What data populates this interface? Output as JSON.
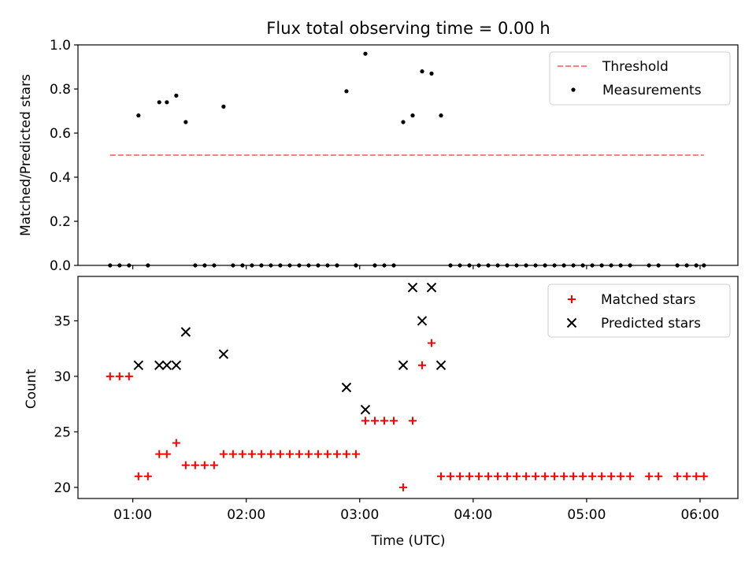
{
  "chart_data": [
    {
      "type": "scatter",
      "title": "Flux total observing time = 0.00 h",
      "xlabel": "",
      "ylabel": "Matched/Predicted stars",
      "ylim": [
        0,
        1.0
      ],
      "yticks": [
        "0.0",
        "0.2",
        "0.4",
        "0.6",
        "0.8",
        "1.0"
      ],
      "ytick_values": [
        0,
        0.2,
        0.4,
        0.6,
        0.8,
        1.0
      ],
      "legend": {
        "position": "top-right",
        "entries": [
          "Threshold",
          "Measurements"
        ]
      },
      "threshold": {
        "name": "Threshold",
        "value": 0.5,
        "x_start": "00:48",
        "x_end": "06:02",
        "color": "#ff7f7f"
      },
      "measurements": {
        "name": "Measurements",
        "color": "#000000",
        "points": [
          [
            "00:48",
            0.0
          ],
          [
            "00:53",
            0.0
          ],
          [
            "00:58",
            0.0
          ],
          [
            "01:03",
            0.68
          ],
          [
            "01:08",
            0.0
          ],
          [
            "01:14",
            0.74
          ],
          [
            "01:18",
            0.74
          ],
          [
            "01:23",
            0.77
          ],
          [
            "01:28",
            0.65
          ],
          [
            "01:33",
            0.0
          ],
          [
            "01:38",
            0.0
          ],
          [
            "01:43",
            0.0
          ],
          [
            "01:48",
            0.72
          ],
          [
            "01:53",
            0.0
          ],
          [
            "01:58",
            0.0
          ],
          [
            "02:03",
            0.0
          ],
          [
            "02:08",
            0.0
          ],
          [
            "02:13",
            0.0
          ],
          [
            "02:18",
            0.0
          ],
          [
            "02:23",
            0.0
          ],
          [
            "02:28",
            0.0
          ],
          [
            "02:33",
            0.0
          ],
          [
            "02:38",
            0.0
          ],
          [
            "02:43",
            0.0
          ],
          [
            "02:48",
            0.0
          ],
          [
            "02:53",
            0.79
          ],
          [
            "02:58",
            0.0
          ],
          [
            "03:03",
            0.96
          ],
          [
            "03:08",
            0.0
          ],
          [
            "03:13",
            0.0
          ],
          [
            "03:18",
            0.0
          ],
          [
            "03:23",
            0.65
          ],
          [
            "03:28",
            0.68
          ],
          [
            "03:33",
            0.88
          ],
          [
            "03:38",
            0.87
          ],
          [
            "03:43",
            0.68
          ],
          [
            "03:48",
            0.0
          ],
          [
            "03:53",
            0.0
          ],
          [
            "03:58",
            0.0
          ],
          [
            "04:03",
            0.0
          ],
          [
            "04:08",
            0.0
          ],
          [
            "04:13",
            0.0
          ],
          [
            "04:18",
            0.0
          ],
          [
            "04:23",
            0.0
          ],
          [
            "04:28",
            0.0
          ],
          [
            "04:33",
            0.0
          ],
          [
            "04:38",
            0.0
          ],
          [
            "04:43",
            0.0
          ],
          [
            "04:48",
            0.0
          ],
          [
            "04:53",
            0.0
          ],
          [
            "04:58",
            0.0
          ],
          [
            "05:03",
            0.0
          ],
          [
            "05:08",
            0.0
          ],
          [
            "05:13",
            0.0
          ],
          [
            "05:18",
            0.0
          ],
          [
            "05:23",
            0.0
          ],
          [
            "05:33",
            0.0
          ],
          [
            "05:38",
            0.0
          ],
          [
            "05:48",
            0.0
          ],
          [
            "05:53",
            0.0
          ],
          [
            "05:58",
            0.0
          ],
          [
            "06:02",
            0.0
          ]
        ]
      }
    },
    {
      "type": "scatter",
      "title": "",
      "xlabel": "Time (UTC)",
      "ylabel": "Count",
      "ylim": [
        19,
        39
      ],
      "yticks": [
        "20",
        "25",
        "30",
        "35"
      ],
      "ytick_values": [
        20,
        25,
        30,
        35
      ],
      "xlim": [
        "00:31",
        "06:20"
      ],
      "xticks": [
        "01:00",
        "02:00",
        "03:00",
        "04:00",
        "05:00",
        "06:00"
      ],
      "legend": {
        "position": "top-right",
        "entries": [
          "Matched stars",
          "Predicted stars"
        ]
      },
      "matched": {
        "name": "Matched stars",
        "color": "#ff0000",
        "marker": "+",
        "points": [
          [
            "00:48",
            30
          ],
          [
            "00:53",
            30
          ],
          [
            "00:58",
            30
          ],
          [
            "01:03",
            21
          ],
          [
            "01:08",
            21
          ],
          [
            "01:14",
            23
          ],
          [
            "01:18",
            23
          ],
          [
            "01:23",
            24
          ],
          [
            "01:28",
            22
          ],
          [
            "01:33",
            22
          ],
          [
            "01:38",
            22
          ],
          [
            "01:43",
            22
          ],
          [
            "01:48",
            23
          ],
          [
            "01:53",
            23
          ],
          [
            "01:58",
            23
          ],
          [
            "02:03",
            23
          ],
          [
            "02:08",
            23
          ],
          [
            "02:13",
            23
          ],
          [
            "02:18",
            23
          ],
          [
            "02:23",
            23
          ],
          [
            "02:28",
            23
          ],
          [
            "02:33",
            23
          ],
          [
            "02:38",
            23
          ],
          [
            "02:43",
            23
          ],
          [
            "02:48",
            23
          ],
          [
            "02:53",
            23
          ],
          [
            "02:58",
            23
          ],
          [
            "03:03",
            26
          ],
          [
            "03:08",
            26
          ],
          [
            "03:13",
            26
          ],
          [
            "03:18",
            26
          ],
          [
            "03:23",
            20
          ],
          [
            "03:28",
            26
          ],
          [
            "03:33",
            31
          ],
          [
            "03:38",
            33
          ],
          [
            "03:43",
            21
          ],
          [
            "03:48",
            21
          ],
          [
            "03:53",
            21
          ],
          [
            "03:58",
            21
          ],
          [
            "04:03",
            21
          ],
          [
            "04:08",
            21
          ],
          [
            "04:13",
            21
          ],
          [
            "04:18",
            21
          ],
          [
            "04:23",
            21
          ],
          [
            "04:28",
            21
          ],
          [
            "04:33",
            21
          ],
          [
            "04:38",
            21
          ],
          [
            "04:43",
            21
          ],
          [
            "04:48",
            21
          ],
          [
            "04:53",
            21
          ],
          [
            "04:58",
            21
          ],
          [
            "05:03",
            21
          ],
          [
            "05:08",
            21
          ],
          [
            "05:13",
            21
          ],
          [
            "05:18",
            21
          ],
          [
            "05:23",
            21
          ],
          [
            "05:33",
            21
          ],
          [
            "05:38",
            21
          ],
          [
            "05:48",
            21
          ],
          [
            "05:53",
            21
          ],
          [
            "05:58",
            21
          ],
          [
            "06:02",
            21
          ]
        ]
      },
      "predicted": {
        "name": "Predicted stars",
        "color": "#000000",
        "marker": "x",
        "points": [
          [
            "01:03",
            31
          ],
          [
            "01:14",
            31
          ],
          [
            "01:18",
            31
          ],
          [
            "01:23",
            31
          ],
          [
            "01:28",
            34
          ],
          [
            "01:48",
            32
          ],
          [
            "02:53",
            29
          ],
          [
            "03:03",
            27
          ],
          [
            "03:23",
            31
          ],
          [
            "03:28",
            38
          ],
          [
            "03:33",
            35
          ],
          [
            "03:38",
            38
          ],
          [
            "03:43",
            31
          ]
        ]
      }
    }
  ]
}
